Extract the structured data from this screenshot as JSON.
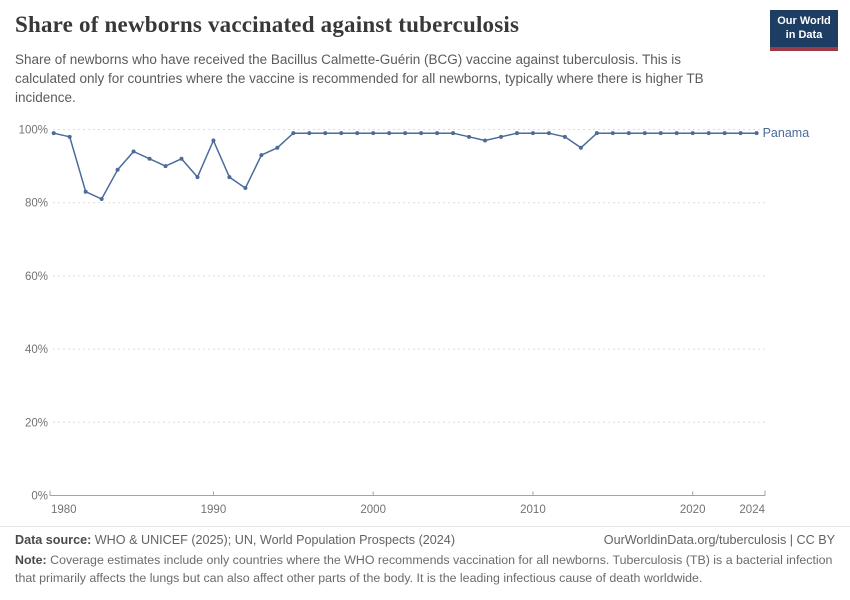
{
  "header": {
    "title": "Share of newborns vaccinated against tuberculosis",
    "logo_line1": "Our World",
    "logo_line2": "in Data",
    "logo_bg_color": "#1d3d63",
    "logo_stripe_color": "#9c3a46"
  },
  "subtitle": "Share of newborns who have received the Bacillus Calmette-Guérin (BCG) vaccine against tuberculosis. This is calculated only for countries where the vaccine is recommended for all newborns, typically where there is higher TB incidence.",
  "chart_data": {
    "type": "line",
    "title": "Share of newborns vaccinated against tuberculosis",
    "grid": "horizontal-dashed",
    "xlim": [
      1980,
      2024
    ],
    "ylim": [
      0,
      100
    ],
    "x_ticks": [
      1980,
      1990,
      2000,
      2010,
      2020,
      2024
    ],
    "y_ticks": [
      0,
      20,
      40,
      60,
      80,
      100
    ],
    "y_tick_suffix": "%",
    "legend_position": "end-of-line",
    "series": [
      {
        "name": "Panama",
        "color": "#4c6a9c",
        "x": [
          1980,
          1981,
          1982,
          1983,
          1984,
          1985,
          1986,
          1987,
          1988,
          1989,
          1990,
          1991,
          1992,
          1993,
          1994,
          1995,
          1996,
          1997,
          1998,
          1999,
          2000,
          2001,
          2002,
          2003,
          2004,
          2005,
          2006,
          2007,
          2008,
          2009,
          2010,
          2011,
          2012,
          2013,
          2014,
          2015,
          2016,
          2017,
          2018,
          2019,
          2020,
          2021,
          2022,
          2023,
          2024
        ],
        "values": [
          99,
          98,
          83,
          81,
          89,
          94,
          92,
          90,
          92,
          87,
          97,
          87,
          84,
          93,
          95,
          99,
          99,
          99,
          99,
          99,
          99,
          99,
          99,
          99,
          99,
          99,
          98,
          97,
          98,
          99,
          99,
          99,
          98,
          95,
          99,
          99,
          99,
          99,
          99,
          99,
          99,
          99,
          99,
          99,
          99
        ]
      }
    ]
  },
  "footer": {
    "datasource_label": "Data source:",
    "datasource_text": " WHO & UNICEF (2025); UN, World Population Prospects (2024)",
    "link": "OurWorldinData.org/tuberculosis | CC BY",
    "note_label": "Note:",
    "note_text": " Coverage estimates include only countries where the WHO recommends vaccination for all newborns. Tuberculosis (TB) is a bacterial infection that primarily affects the lungs but can also affect other parts of the body. It is the leading infectious cause of death worldwide."
  }
}
